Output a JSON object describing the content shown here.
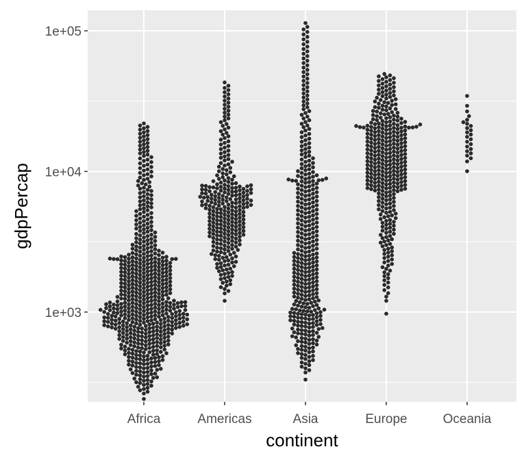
{
  "chart_data": {
    "type": "scatter",
    "subtype": "beeswarm",
    "title": "",
    "xlabel": "continent",
    "ylabel": "gdpPercap",
    "y_scale": "log10",
    "ylim": [
      230,
      140000
    ],
    "y_ticks": [
      {
        "value": 1000,
        "label": "1e+03"
      },
      {
        "value": 10000,
        "label": "1e+04"
      },
      {
        "value": 100000,
        "label": "1e+05"
      }
    ],
    "y_minor_ticks": [
      316.2,
      3162.3,
      31622.8
    ],
    "categories": [
      "Africa",
      "Americas",
      "Asia",
      "Europe",
      "Oceania"
    ],
    "grid": true,
    "legend": "none",
    "colors": {
      "panel": "#EBEBEB",
      "grid": "#FFFFFF",
      "point": "#1a1a1a",
      "tick_text": "#4D4D4D"
    },
    "series": [
      {
        "category": "Africa",
        "count": 624,
        "min": 241,
        "q1": 761,
        "median": 1192,
        "q3": 2377,
        "max": 21951,
        "values_sample": [
          241,
          278,
          299,
          330,
          369,
          414,
          470,
          520,
          566,
          619,
          690,
          761,
          830,
          899,
          980,
          1072,
          1192,
          1310,
          1450,
          1630,
          1830,
          2052,
          2377,
          2800,
          3200,
          3850,
          4900,
          6250,
          8200,
          9600,
          12100,
          14600,
          21951
        ]
      },
      {
        "category": "Americas",
        "count": 300,
        "min": 1202,
        "q1": 3428,
        "median": 5466,
        "q3": 7830,
        "max": 42952,
        "values_sample": [
          1202,
          1500,
          1840,
          2200,
          2650,
          3050,
          3428,
          3900,
          4400,
          4950,
          5466,
          6050,
          6700,
          7300,
          7830,
          8700,
          9800,
          11200,
          13500,
          17000,
          21000,
          26000,
          32000,
          37000,
          42952
        ]
      },
      {
        "category": "Asia",
        "count": 396,
        "min": 331,
        "q1": 1057,
        "median": 2647,
        "q3": 8549,
        "max": 113523,
        "values_sample": [
          331,
          380,
          430,
          510,
          600,
          690,
          780,
          880,
          1057,
          1250,
          1500,
          1820,
          2200,
          2647,
          3100,
          3700,
          4500,
          5500,
          6700,
          8549,
          10800,
          13500,
          17500,
          22000,
          28000,
          35000,
          42000,
          59000,
          80000,
          108000,
          113523
        ]
      },
      {
        "category": "Europe",
        "count": 360,
        "min": 974,
        "q1": 7213,
        "median": 12082,
        "q3": 20461,
        "max": 49357,
        "values_sample": [
          974,
          1350,
          1900,
          2600,
          3400,
          4200,
          5100,
          6100,
          7213,
          8300,
          9500,
          10800,
          12082,
          13600,
          15300,
          17200,
          20461,
          23500,
          27000,
          31000,
          35000,
          41000,
          49357
        ]
      },
      {
        "category": "Oceania",
        "count": 24,
        "min": 10040,
        "q1": 14142,
        "median": 17983,
        "q3": 22214,
        "max": 34435,
        "values_sample": [
          10040,
          10557,
          11000,
          12000,
          12800,
          13500,
          14142,
          15000,
          16000,
          17000,
          17983,
          18500,
          19200,
          20000,
          21000,
          22214,
          23400,
          24800,
          26500,
          30000,
          34435
        ]
      }
    ]
  }
}
